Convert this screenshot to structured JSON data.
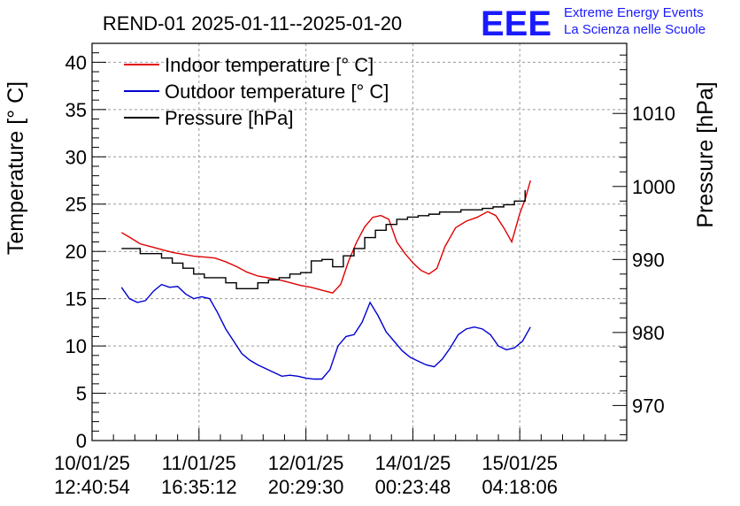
{
  "chart_data": {
    "type": "line",
    "title": "REND-01 2025-01-11--2025-01-20",
    "logo": {
      "mark": "EEE",
      "line1": "Extreme Energy Events",
      "line2": "La Scienza nelle Scuole",
      "color": "#1a1aff"
    },
    "ylabel_left": "Temperature [° C]",
    "ylabel_right": "Pressure [hPa]",
    "ylim_left": [
      0,
      42
    ],
    "ylim_right": [
      965.2,
      1019.6
    ],
    "xlim": [
      0,
      10
    ],
    "left_ticks": [
      0,
      5,
      10,
      15,
      20,
      25,
      30,
      35,
      40
    ],
    "right_ticks": [
      970,
      980,
      990,
      1000,
      1010
    ],
    "x_ticks": [
      {
        "pos": 0,
        "date": "10/01/25",
        "time": "12:40:54"
      },
      {
        "pos": 2,
        "date": "11/01/25",
        "time": "16:35:12"
      },
      {
        "pos": 4,
        "date": "12/01/25",
        "time": "20:29:30"
      },
      {
        "pos": 6,
        "date": "14/01/25",
        "time": "00:23:48"
      },
      {
        "pos": 8,
        "date": "15/01/25",
        "time": "04:18:06"
      }
    ],
    "legend": [
      {
        "name": "Indoor temperature [° C]",
        "color": "#e00000"
      },
      {
        "name": "Outdoor temperature [° C]",
        "color": "#0000d0"
      },
      {
        "name": "Pressure [hPa]",
        "color": "#000000"
      }
    ],
    "series": [
      {
        "name": "Indoor temperature [° C]",
        "axis": "left",
        "color": "#e00000",
        "x": [
          0.55,
          0.7,
          0.9,
          1.1,
          1.3,
          1.5,
          1.7,
          1.9,
          2.1,
          2.3,
          2.5,
          2.7,
          2.9,
          3.1,
          3.3,
          3.5,
          3.7,
          3.9,
          4.1,
          4.3,
          4.5,
          4.65,
          4.8,
          4.95,
          5.1,
          5.25,
          5.4,
          5.55,
          5.7,
          5.85,
          6.0,
          6.15,
          6.3,
          6.45,
          6.6,
          6.8,
          7.0,
          7.2,
          7.4,
          7.55,
          7.7,
          7.85,
          8.0,
          8.1,
          8.2
        ],
        "y": [
          22.0,
          21.5,
          20.8,
          20.5,
          20.2,
          19.9,
          19.7,
          19.5,
          19.4,
          19.3,
          18.9,
          18.4,
          17.8,
          17.4,
          17.2,
          17.0,
          16.7,
          16.4,
          16.2,
          15.9,
          15.6,
          16.5,
          19.0,
          21.0,
          22.6,
          23.6,
          23.8,
          23.4,
          21.0,
          19.8,
          18.8,
          18.0,
          17.6,
          18.2,
          20.5,
          22.5,
          23.2,
          23.6,
          24.2,
          23.8,
          22.5,
          21.0,
          24.0,
          25.5,
          27.5
        ]
      },
      {
        "name": "Outdoor temperature [° C]",
        "axis": "left",
        "color": "#0000d0",
        "x": [
          0.55,
          0.7,
          0.85,
          1.0,
          1.15,
          1.3,
          1.45,
          1.6,
          1.75,
          1.9,
          2.05,
          2.2,
          2.35,
          2.5,
          2.65,
          2.8,
          2.95,
          3.1,
          3.25,
          3.4,
          3.55,
          3.7,
          3.85,
          4.0,
          4.15,
          4.3,
          4.45,
          4.6,
          4.75,
          4.9,
          5.05,
          5.2,
          5.35,
          5.5,
          5.65,
          5.8,
          5.95,
          6.1,
          6.25,
          6.4,
          6.55,
          6.7,
          6.85,
          7.0,
          7.15,
          7.3,
          7.45,
          7.6,
          7.75,
          7.9,
          8.05,
          8.2
        ],
        "y": [
          16.2,
          15.0,
          14.6,
          14.8,
          15.8,
          16.5,
          16.2,
          16.3,
          15.5,
          15.0,
          15.2,
          15.0,
          13.5,
          11.8,
          10.5,
          9.2,
          8.5,
          8.0,
          7.6,
          7.2,
          6.8,
          6.9,
          6.8,
          6.6,
          6.5,
          6.5,
          7.5,
          10.0,
          11.0,
          11.2,
          12.5,
          14.6,
          13.2,
          11.5,
          10.5,
          9.5,
          8.8,
          8.4,
          8.0,
          7.8,
          8.6,
          9.8,
          11.2,
          11.8,
          12.0,
          11.8,
          11.2,
          10.0,
          9.6,
          9.8,
          10.5,
          12.0
        ]
      },
      {
        "name": "Pressure [hPa]",
        "axis": "right",
        "color": "#000000",
        "x": [
          0.55,
          0.7,
          0.9,
          1.1,
          1.3,
          1.5,
          1.7,
          1.9,
          2.1,
          2.3,
          2.5,
          2.7,
          2.9,
          3.1,
          3.3,
          3.5,
          3.7,
          3.9,
          4.1,
          4.3,
          4.5,
          4.7,
          4.9,
          5.1,
          5.3,
          5.5,
          5.7,
          5.9,
          6.1,
          6.3,
          6.5,
          6.7,
          6.9,
          7.1,
          7.3,
          7.5,
          7.7,
          7.9,
          8.1
        ],
        "y": [
          991.5,
          991.5,
          990.8,
          990.8,
          990.2,
          989.5,
          988.8,
          988.0,
          987.5,
          987.5,
          986.8,
          986.0,
          986.0,
          986.8,
          987.2,
          987.5,
          988.0,
          988.2,
          989.8,
          990.0,
          989.0,
          990.5,
          991.5,
          993.0,
          994.0,
          994.8,
          995.5,
          995.8,
          996.0,
          996.2,
          996.5,
          996.5,
          996.8,
          996.8,
          997.0,
          997.2,
          997.5,
          998.0,
          999.5
        ]
      }
    ]
  }
}
